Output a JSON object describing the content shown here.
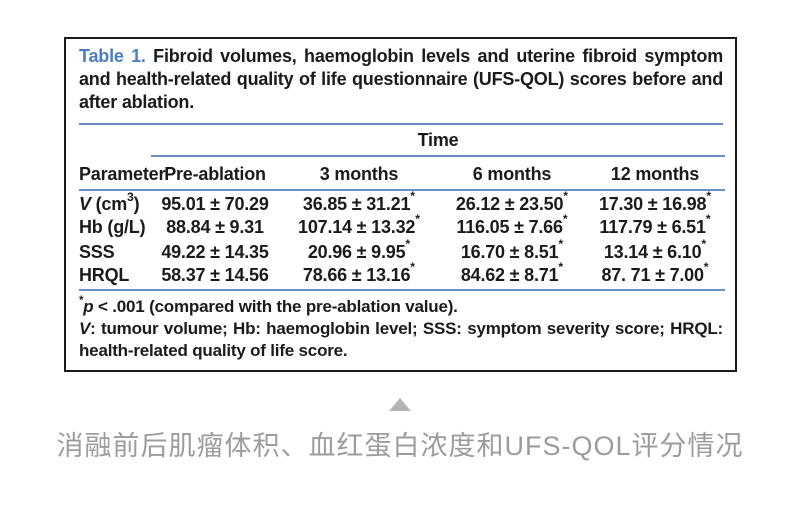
{
  "colors": {
    "accent_blue": "#4a7ebf",
    "rule_blue": "#6a8fc4",
    "text": "#1b1b1b",
    "caption_gray": "#9c9c9c",
    "triangle_gray": "#b4b4b4"
  },
  "table": {
    "label": "Table 1.",
    "title": "Fibroid volumes, haemoglobin levels and uterine fibroid symptom and health-related quality of life questionnaire (UFS-QOL) scores before and after ablation.",
    "group_header": "Time",
    "columns": [
      "Parameter",
      "Pre-ablation",
      "3 months",
      "6 months",
      "12 months"
    ],
    "rows": [
      {
        "parameter": [
          {
            "t": "V",
            "style": "italic"
          },
          {
            "t": " (cm"
          },
          {
            "t": "3",
            "style": "sup"
          },
          {
            "t": ")"
          }
        ],
        "values": [
          {
            "v": "95.01 ± 70.29",
            "star": false
          },
          {
            "v": "36.85 ± 31.21",
            "star": true
          },
          {
            "v": "26.12 ± 23.50",
            "star": true
          },
          {
            "v": "17.30 ± 16.98",
            "star": true
          }
        ]
      },
      {
        "parameter": [
          {
            "t": "Hb (g/L)"
          }
        ],
        "values": [
          {
            "v": "88.84 ± 9.31",
            "star": false
          },
          {
            "v": "107.14 ± 13.32",
            "star": true
          },
          {
            "v": "116.05 ± 7.66",
            "star": true
          },
          {
            "v": "117.79 ± 6.51",
            "star": true
          }
        ]
      },
      {
        "parameter": [
          {
            "t": "SSS"
          }
        ],
        "values": [
          {
            "v": "49.22 ± 14.35",
            "star": false
          },
          {
            "v": "20.96 ± 9.95",
            "star": true
          },
          {
            "v": "16.70 ± 8.51",
            "star": true
          },
          {
            "v": "13.14 ± 6.10",
            "star": true
          }
        ]
      },
      {
        "parameter": [
          {
            "t": "HRQL"
          }
        ],
        "values": [
          {
            "v": "58.37 ± 14.56",
            "star": false
          },
          {
            "v": "78.66 ± 13.16",
            "star": true
          },
          {
            "v": "84.62 ± 8.71",
            "star": true
          },
          {
            "v": "87. 71 ± 7.00",
            "star": true
          }
        ]
      }
    ],
    "footnotes": [
      {
        "justified": false,
        "segments": [
          {
            "t": "*",
            "style": "sup"
          },
          {
            "t": "p",
            "style": "italic"
          },
          {
            "t": " < .001 (compared with the pre-ablation value)."
          }
        ]
      },
      {
        "justified": true,
        "segments": [
          {
            "t": "V",
            "style": "italic"
          },
          {
            "t": ": tumour volume; Hb: haemoglobin level; SSS: symptom severity score; HRQL: health-related quality of life score."
          }
        ]
      }
    ]
  },
  "caption": {
    "text": "消融前后肌瘤体积、血红蛋白浓度和UFS-QOL评分情况"
  }
}
